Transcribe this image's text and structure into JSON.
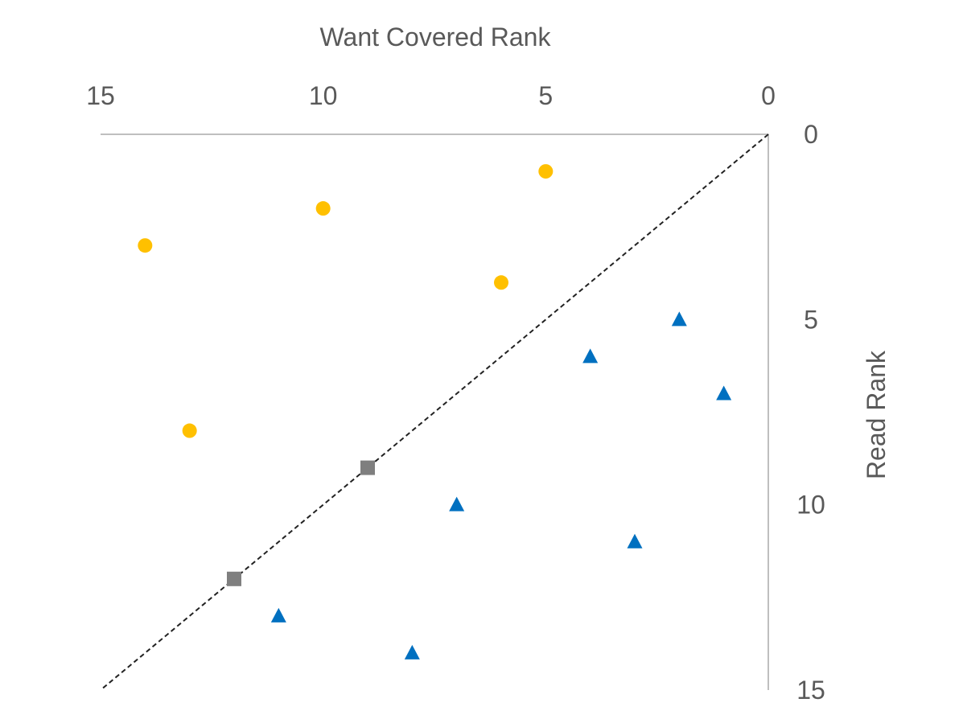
{
  "chart_data": {
    "type": "scatter",
    "title": "",
    "xlabel": "Want Covered Rank",
    "ylabel": "Read Rank",
    "xlim": [
      0,
      15
    ],
    "ylim": [
      0,
      15
    ],
    "x_reversed": true,
    "y_reversed": true,
    "x_axis_position": "top",
    "y_axis_position": "right",
    "grid": false,
    "legend": "none",
    "x_ticks": [
      15,
      10,
      5,
      0
    ],
    "y_ticks": [
      0,
      5,
      10,
      15
    ],
    "reference_line": {
      "style": "dashed",
      "color": "#222222",
      "from": [
        0,
        0
      ],
      "to": [
        15,
        15
      ]
    },
    "series": [
      {
        "marker": "circle",
        "color": "#FFC000",
        "points": [
          {
            "x": 5,
            "y": 1
          },
          {
            "x": 10,
            "y": 2
          },
          {
            "x": 14,
            "y": 3
          },
          {
            "x": 6,
            "y": 4
          },
          {
            "x": 13,
            "y": 8
          }
        ]
      },
      {
        "marker": "triangle",
        "color": "#0070C0",
        "points": [
          {
            "x": 2,
            "y": 5
          },
          {
            "x": 4,
            "y": 6
          },
          {
            "x": 1,
            "y": 7
          },
          {
            "x": 7,
            "y": 10
          },
          {
            "x": 3,
            "y": 11
          },
          {
            "x": 11,
            "y": 13
          },
          {
            "x": 8,
            "y": 14
          }
        ]
      },
      {
        "marker": "square",
        "color": "#7F7F7F",
        "points": [
          {
            "x": 9,
            "y": 9
          },
          {
            "x": 12,
            "y": 12
          }
        ]
      }
    ]
  }
}
